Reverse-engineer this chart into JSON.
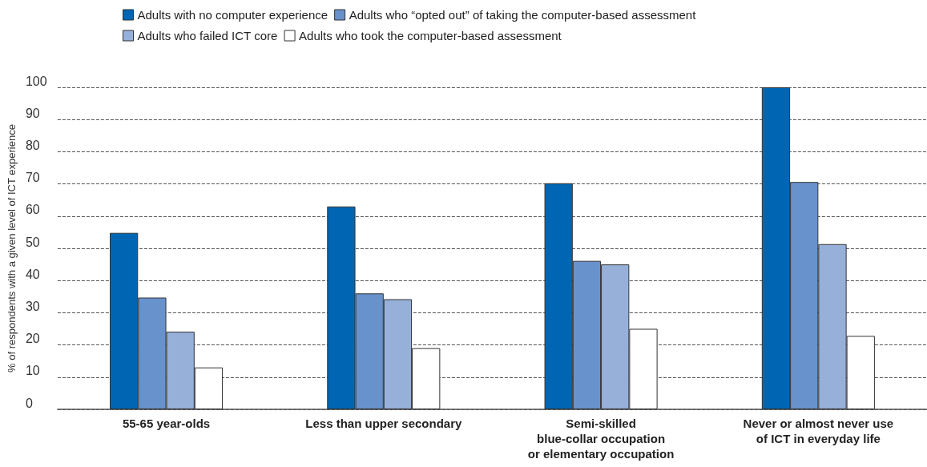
{
  "chart_data": {
    "type": "bar",
    "ylabel": "% of respondents with a given level of ICT experience",
    "categories": [
      "55-65 year-olds",
      "Less than upper secondary",
      "Semi-skilled\nblue-collar occupation\nor elementary occupation",
      "Never or almost never use\nof ICT in everyday life"
    ],
    "series": [
      {
        "name": "Adults with no computer experience",
        "color": "#0066b3",
        "values": [
          54.8,
          63.0,
          70.2,
          100
        ]
      },
      {
        "name": "Adults who “opted out” of taking the computer-based assessment",
        "color": "#6892cc",
        "values": [
          34.7,
          36.0,
          46.1,
          70.6
        ]
      },
      {
        "name": "Adults who failed ICT core",
        "color": "#96b0da",
        "values": [
          24.1,
          34.2,
          45.0,
          51.3
        ]
      },
      {
        "name": "Adults who took the computer-based assessment",
        "color": "#ffffff",
        "values": [
          13.0,
          19.0,
          25.0,
          22.8
        ]
      }
    ],
    "ylim": [
      0,
      100
    ],
    "yticks": [
      0,
      10,
      20,
      30,
      40,
      50,
      60,
      70,
      80,
      90,
      100
    ],
    "grid": "y",
    "legend": "top"
  }
}
